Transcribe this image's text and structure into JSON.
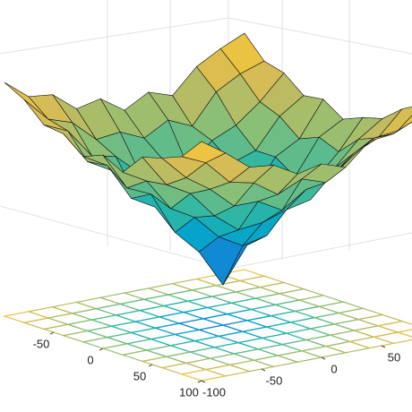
{
  "chart_data": {
    "type": "surface",
    "x": [
      -100,
      -80,
      -60,
      -40,
      -20,
      0,
      20,
      40,
      60,
      80,
      100
    ],
    "y": [
      -100,
      -80,
      -60,
      -40,
      -20,
      0,
      20,
      40,
      60,
      80,
      100
    ],
    "z": [
      [
        87,
        80,
        79,
        72,
        74,
        68,
        73,
        70,
        79,
        84,
        88
      ],
      [
        83,
        74,
        71,
        63,
        64,
        60,
        65,
        61,
        72,
        77,
        80
      ],
      [
        76,
        72,
        61,
        59,
        51,
        54,
        50,
        58,
        62,
        69,
        78
      ],
      [
        75,
        63,
        58,
        47,
        46,
        39,
        45,
        52,
        55,
        66,
        72
      ],
      [
        69,
        64,
        50,
        45,
        33,
        31,
        36,
        42,
        55,
        60,
        73
      ],
      [
        72,
        58,
        54,
        38,
        29,
        15,
        28,
        43,
        50,
        63,
        68
      ],
      [
        68,
        63,
        51,
        46,
        37,
        32,
        34,
        45,
        51,
        60,
        71
      ],
      [
        76,
        64,
        59,
        49,
        42,
        43,
        46,
        48,
        58,
        67,
        73
      ],
      [
        78,
        69,
        63,
        55,
        55,
        50,
        56,
        59,
        66,
        70,
        79
      ],
      [
        81,
        77,
        68,
        66,
        60,
        64,
        61,
        68,
        74,
        75,
        83
      ],
      [
        89,
        83,
        76,
        75,
        70,
        72,
        69,
        77,
        78,
        82,
        86
      ]
    ],
    "xlim": [
      -100,
      100
    ],
    "ylim": [
      -100,
      100
    ],
    "zlim": [
      0,
      100
    ],
    "xticks": [
      -50,
      0,
      50,
      100
    ],
    "yticks": [
      -100,
      -50,
      0,
      50
    ],
    "colormap": [
      "#352a87",
      "#0f5cdd",
      "#1481d6",
      "#06a4ca",
      "#2eb7a4",
      "#87bf77",
      "#d1bb59",
      "#fec832",
      "#f9fb0e"
    ],
    "grid": true
  }
}
